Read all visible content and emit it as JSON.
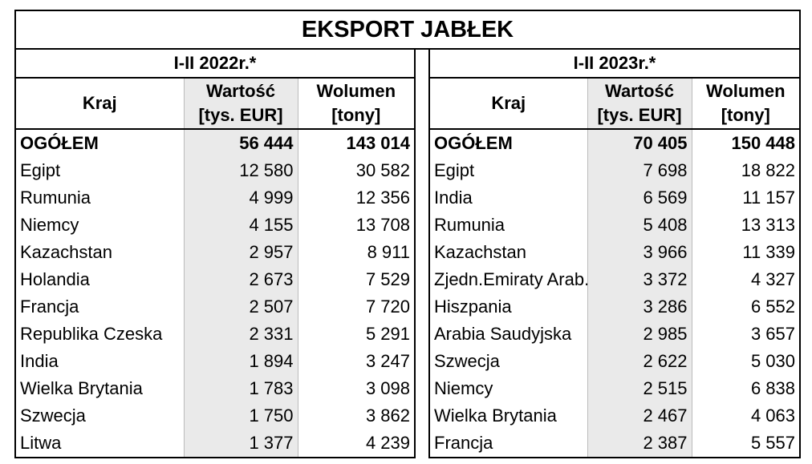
{
  "title": "EKSPORT JABŁEK",
  "left": {
    "period": "I-II 2022r.*",
    "headers": {
      "country": "Kraj",
      "value": "Wartość [tys. EUR]",
      "volume": "Wolumen [tony]"
    },
    "total": {
      "country": "OGÓŁEM",
      "value": "56 444",
      "volume": "143 014"
    },
    "rows": [
      {
        "country": "Egipt",
        "value": "12 580",
        "volume": "30 582"
      },
      {
        "country": "Rumunia",
        "value": "4 999",
        "volume": "12 356"
      },
      {
        "country": "Niemcy",
        "value": "4 155",
        "volume": "13 708"
      },
      {
        "country": "Kazachstan",
        "value": "2 957",
        "volume": "8 911"
      },
      {
        "country": "Holandia",
        "value": "2 673",
        "volume": "7 529"
      },
      {
        "country": "Francja",
        "value": "2 507",
        "volume": "7 720"
      },
      {
        "country": "Republika Czeska",
        "value": "2 331",
        "volume": "5 291"
      },
      {
        "country": "India",
        "value": "1 894",
        "volume": "3 247"
      },
      {
        "country": "Wielka Brytania",
        "value": "1 783",
        "volume": "3 098"
      },
      {
        "country": "Szwecja",
        "value": "1 750",
        "volume": "3 862"
      },
      {
        "country": "Litwa",
        "value": "1 377",
        "volume": "4 239"
      }
    ]
  },
  "right": {
    "period": "I-II 2023r.*",
    "headers": {
      "country": "Kraj",
      "value": "Wartość [tys. EUR]",
      "volume": "Wolumen [tony]"
    },
    "total": {
      "country": "OGÓŁEM",
      "value": "70 405",
      "volume": "150 448"
    },
    "rows": [
      {
        "country": "Egipt",
        "value": "7 698",
        "volume": "18 822"
      },
      {
        "country": "India",
        "value": "6 569",
        "volume": "11 157"
      },
      {
        "country": "Rumunia",
        "value": "5 408",
        "volume": "13 313"
      },
      {
        "country": "Kazachstan",
        "value": "3 966",
        "volume": "11 339"
      },
      {
        "country": "Zjedn.Emiraty Arab.",
        "value": "3 372",
        "volume": "4 327"
      },
      {
        "country": "Hiszpania",
        "value": "3 286",
        "volume": "6 552"
      },
      {
        "country": "Arabia Saudyjska",
        "value": "2 985",
        "volume": "3 657"
      },
      {
        "country": "Szwecja",
        "value": "2 622",
        "volume": "5 030"
      },
      {
        "country": "Niemcy",
        "value": "2 515",
        "volume": "6 838"
      },
      {
        "country": "Wielka Brytania",
        "value": "2 467",
        "volume": "4 063"
      },
      {
        "country": "Francja",
        "value": "2 387",
        "volume": "5 557"
      }
    ]
  }
}
